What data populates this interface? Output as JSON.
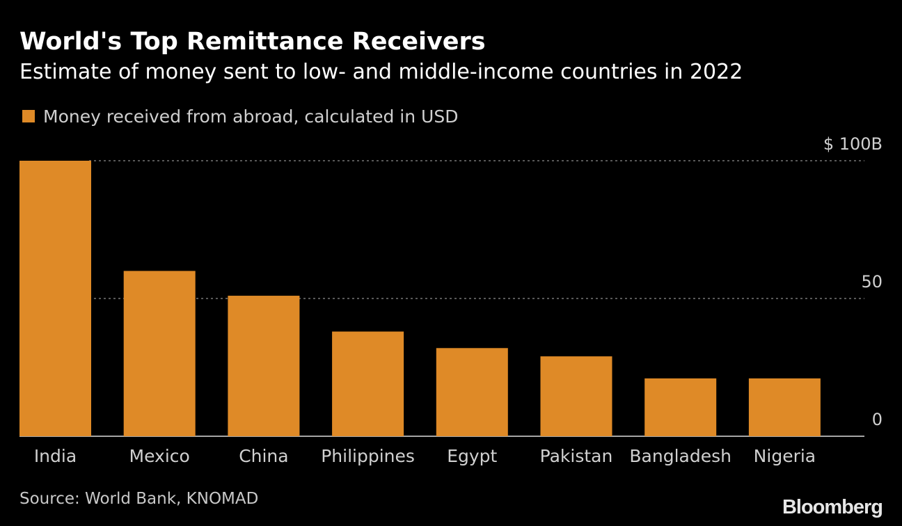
{
  "header": {
    "title": "World's Top Remittance Receivers",
    "subtitle": "Estimate of money sent to low- and middle-income countries in 2022"
  },
  "legend": {
    "label": "Money received from abroad, calculated in USD"
  },
  "colors": {
    "bar": "#DF8A27",
    "grid": "#777777",
    "baseline": "#dddddd",
    "tick_text": "#d0d0d0",
    "category_text": "#d0d0d0"
  },
  "chart_data": {
    "type": "bar",
    "title": "World's Top Remittance Receivers",
    "subtitle": "Estimate of money sent to low- and middle-income countries in 2022",
    "xlabel": "",
    "ylabel": "",
    "categories": [
      "India",
      "Mexico",
      "China",
      "Philippines",
      "Egypt",
      "Pakistan",
      "Bangladesh",
      "Nigeria"
    ],
    "series": [
      {
        "name": "Money received from abroad, calculated in USD",
        "values": [
          100,
          60,
          51,
          38,
          32,
          29,
          21,
          21
        ]
      }
    ],
    "ylim": [
      0,
      100
    ],
    "yticks": [
      0,
      50,
      100
    ],
    "ytick_labels": [
      "0",
      "50",
      "$ 100B"
    ],
    "grid": true,
    "legend_position": "top-left"
  },
  "footer": {
    "source": "Source: World Bank, KNOMAD",
    "brand": "Bloomberg"
  }
}
